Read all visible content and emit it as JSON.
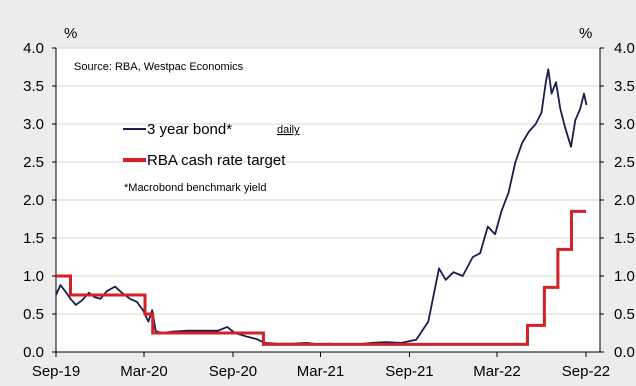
{
  "chart_data": {
    "type": "line",
    "title": "",
    "source": "Source: RBA, Westpac Economics",
    "left_unit": "%",
    "right_unit": "%",
    "frequency_label": "daily",
    "footnote": "*Macrobond benchmark yield",
    "ylim": [
      0,
      4.0
    ],
    "yticks": [
      "0.0",
      "0.5",
      "1.0",
      "1.5",
      "2.0",
      "2.5",
      "3.0",
      "3.5",
      "4.0"
    ],
    "y_tick_values": [
      0,
      0.5,
      1.0,
      1.5,
      2.0,
      2.5,
      3.0,
      3.5,
      4.0
    ],
    "xlim": [
      "2019-09-01",
      "2022-09-30"
    ],
    "xticks": [
      {
        "label": "Sep-19",
        "date": "2019-09-01"
      },
      {
        "label": "Mar-20",
        "date": "2020-03-01"
      },
      {
        "label": "Sep-20",
        "date": "2020-09-01"
      },
      {
        "label": "Mar-21",
        "date": "2021-03-01"
      },
      {
        "label": "Sep-21",
        "date": "2021-09-01"
      },
      {
        "label": "Mar-22",
        "date": "2022-03-01"
      },
      {
        "label": "Sep-22",
        "date": "2022-09-01"
      }
    ],
    "grid": true,
    "legend_position": "top-left",
    "series": [
      {
        "name": "3 year bond*",
        "color": "#1c1c4e",
        "style": "line",
        "points": [
          [
            "2019-09-01",
            0.75
          ],
          [
            "2019-09-10",
            0.88
          ],
          [
            "2019-09-20",
            0.8
          ],
          [
            "2019-10-01",
            0.7
          ],
          [
            "2019-10-12",
            0.62
          ],
          [
            "2019-10-25",
            0.68
          ],
          [
            "2019-11-08",
            0.78
          ],
          [
            "2019-11-20",
            0.72
          ],
          [
            "2019-12-02",
            0.7
          ],
          [
            "2019-12-15",
            0.8
          ],
          [
            "2020-01-01",
            0.86
          ],
          [
            "2020-01-15",
            0.78
          ],
          [
            "2020-02-01",
            0.7
          ],
          [
            "2020-02-15",
            0.66
          ],
          [
            "2020-02-28",
            0.55
          ],
          [
            "2020-03-10",
            0.4
          ],
          [
            "2020-03-18",
            0.55
          ],
          [
            "2020-03-25",
            0.28
          ],
          [
            "2020-04-05",
            0.25
          ],
          [
            "2020-05-01",
            0.27
          ],
          [
            "2020-06-01",
            0.28
          ],
          [
            "2020-07-01",
            0.28
          ],
          [
            "2020-08-01",
            0.28
          ],
          [
            "2020-08-20",
            0.33
          ],
          [
            "2020-09-05",
            0.25
          ],
          [
            "2020-10-01",
            0.2
          ],
          [
            "2020-10-20",
            0.17
          ],
          [
            "2020-11-05",
            0.12
          ],
          [
            "2020-12-01",
            0.11
          ],
          [
            "2021-01-01",
            0.11
          ],
          [
            "2021-02-01",
            0.12
          ],
          [
            "2021-02-25",
            0.1
          ],
          [
            "2021-03-20",
            0.11
          ],
          [
            "2021-04-15",
            0.1
          ],
          [
            "2021-05-15",
            0.1
          ],
          [
            "2021-06-15",
            0.12
          ],
          [
            "2021-07-15",
            0.13
          ],
          [
            "2021-08-15",
            0.12
          ],
          [
            "2021-09-15",
            0.16
          ],
          [
            "2021-10-10",
            0.4
          ],
          [
            "2021-10-22",
            0.78
          ],
          [
            "2021-11-01",
            1.1
          ],
          [
            "2021-11-15",
            0.95
          ],
          [
            "2021-12-01",
            1.05
          ],
          [
            "2021-12-20",
            1.0
          ],
          [
            "2022-01-10",
            1.25
          ],
          [
            "2022-01-25",
            1.3
          ],
          [
            "2022-02-10",
            1.65
          ],
          [
            "2022-02-25",
            1.55
          ],
          [
            "2022-03-10",
            1.85
          ],
          [
            "2022-03-25",
            2.1
          ],
          [
            "2022-04-08",
            2.5
          ],
          [
            "2022-04-22",
            2.75
          ],
          [
            "2022-05-06",
            2.9
          ],
          [
            "2022-05-20",
            3.0
          ],
          [
            "2022-06-01",
            3.15
          ],
          [
            "2022-06-10",
            3.55
          ],
          [
            "2022-06-15",
            3.72
          ],
          [
            "2022-06-22",
            3.4
          ],
          [
            "2022-07-01",
            3.55
          ],
          [
            "2022-07-10",
            3.2
          ],
          [
            "2022-07-20",
            2.95
          ],
          [
            "2022-08-01",
            2.7
          ],
          [
            "2022-08-10",
            3.05
          ],
          [
            "2022-08-20",
            3.2
          ],
          [
            "2022-08-28",
            3.4
          ],
          [
            "2022-09-02",
            3.25
          ]
        ]
      },
      {
        "name": "RBA cash rate target",
        "color": "#d42027",
        "style": "step",
        "points": [
          [
            "2019-09-01",
            1.0
          ],
          [
            "2019-10-01",
            0.75
          ],
          [
            "2020-03-03",
            0.5
          ],
          [
            "2020-03-19",
            0.25
          ],
          [
            "2020-11-03",
            0.1
          ],
          [
            "2022-05-03",
            0.35
          ],
          [
            "2022-06-07",
            0.85
          ],
          [
            "2022-07-05",
            1.35
          ],
          [
            "2022-08-02",
            1.85
          ],
          [
            "2022-09-01",
            1.85
          ]
        ]
      }
    ]
  }
}
